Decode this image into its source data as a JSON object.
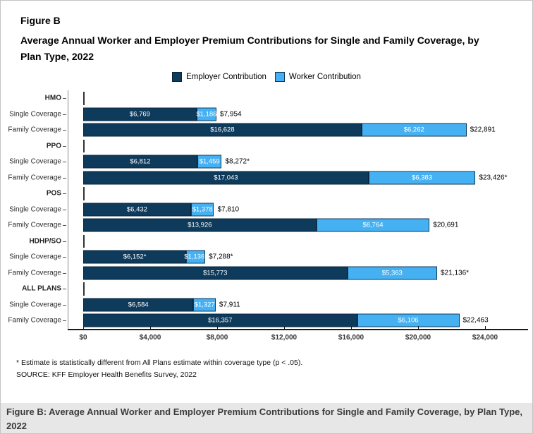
{
  "figure": {
    "label": "Figure B",
    "title": "Average Annual Worker and Employer Premium Contributions for Single and Family Coverage, by Plan Type, 2022",
    "footnote": "* Estimate is statistically different from All Plans estimate within coverage type (p < .05).",
    "source": "SOURCE: KFF Employer Health Benefits Survey, 2022",
    "caption": "Figure B: Average Annual Worker and Employer Premium Contributions for Single and Family Coverage, by Plan Type, 2022"
  },
  "colors": {
    "employer": "#0e3a5c",
    "employer_border": "#07243c",
    "worker": "#45b1f2",
    "worker_border": "#0e3a5c",
    "caption_bg": "#e7e7e7"
  },
  "legend": [
    {
      "id": "employer",
      "label": "Employer Contribution"
    },
    {
      "id": "worker",
      "label": "Worker Contribution"
    }
  ],
  "chart_data": {
    "type": "bar",
    "orientation": "horizontal",
    "stacked": true,
    "title": "Average Annual Worker and Employer Premium Contributions for Single and Family Coverage, by Plan Type, 2022",
    "xlabel": "",
    "ylabel": "",
    "xlim": [
      0,
      24000
    ],
    "x_tick_labels": [
      "$0",
      "$4,000",
      "$8,000",
      "$12,000",
      "$16,000",
      "$20,000",
      "$24,000"
    ],
    "grid": false,
    "legend_position": "top",
    "series_names": [
      "Employer Contribution",
      "Worker Contribution"
    ],
    "groups": [
      {
        "plan": "HMO",
        "rows": [
          {
            "label": "Single Coverage",
            "employer": 6769,
            "worker": 1186,
            "total": 7954,
            "employer_label": "$6,769",
            "worker_label": "$1,186",
            "total_label": "$7,954"
          },
          {
            "label": "Family Coverage",
            "employer": 16628,
            "worker": 6262,
            "total": 22891,
            "employer_label": "$16,628",
            "worker_label": "$6,262",
            "total_label": "$22,891"
          }
        ]
      },
      {
        "plan": "PPO",
        "rows": [
          {
            "label": "Single Coverage",
            "employer": 6812,
            "worker": 1459,
            "total": 8272,
            "employer_label": "$6,812",
            "worker_label": "$1,459",
            "total_label": "$8,272*"
          },
          {
            "label": "Family Coverage",
            "employer": 17043,
            "worker": 6383,
            "total": 23426,
            "employer_label": "$17,043",
            "worker_label": "$6,383",
            "total_label": "$23,426*"
          }
        ]
      },
      {
        "plan": "POS",
        "rows": [
          {
            "label": "Single Coverage",
            "employer": 6432,
            "worker": 1378,
            "total": 7810,
            "employer_label": "$6,432",
            "worker_label": "$1,378",
            "total_label": "$7,810"
          },
          {
            "label": "Family Coverage",
            "employer": 13926,
            "worker": 6764,
            "total": 20691,
            "employer_label": "$13,926",
            "worker_label": "$6,764",
            "total_label": "$20,691"
          }
        ]
      },
      {
        "plan": "HDHP/SO",
        "rows": [
          {
            "label": "Single Coverage",
            "employer": 6152,
            "worker": 1136,
            "total": 7288,
            "employer_label": "$6,152*",
            "worker_label": "$1,136*",
            "total_label": "$7,288*"
          },
          {
            "label": "Family Coverage",
            "employer": 15773,
            "worker": 5363,
            "total": 21136,
            "employer_label": "$15,773",
            "worker_label": "$5,363",
            "total_label": "$21,136*"
          }
        ]
      },
      {
        "plan": "ALL PLANS",
        "rows": [
          {
            "label": "Single Coverage",
            "employer": 6584,
            "worker": 1327,
            "total": 7911,
            "employer_label": "$6,584",
            "worker_label": "$1,327",
            "total_label": "$7,911"
          },
          {
            "label": "Family Coverage",
            "employer": 16357,
            "worker": 6106,
            "total": 22463,
            "employer_label": "$16,357",
            "worker_label": "$6,106",
            "total_label": "$22,463"
          }
        ]
      }
    ]
  }
}
